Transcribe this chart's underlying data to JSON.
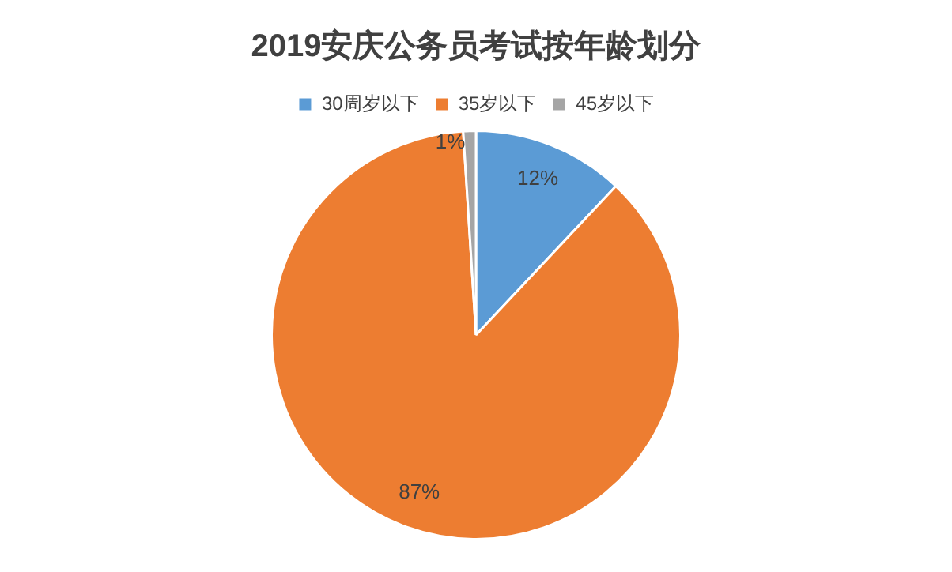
{
  "chart_data": {
    "type": "pie",
    "title": "2019安庆公务员考试按年龄划分",
    "categories": [
      "30周岁以下",
      "35岁以下",
      "45岁以下"
    ],
    "values": [
      12,
      87,
      1
    ],
    "colors": [
      "#5b9bd5",
      "#ed7d31",
      "#a5a5a5"
    ],
    "value_labels": [
      "12%",
      "87%",
      "1%"
    ],
    "legend": "top"
  }
}
